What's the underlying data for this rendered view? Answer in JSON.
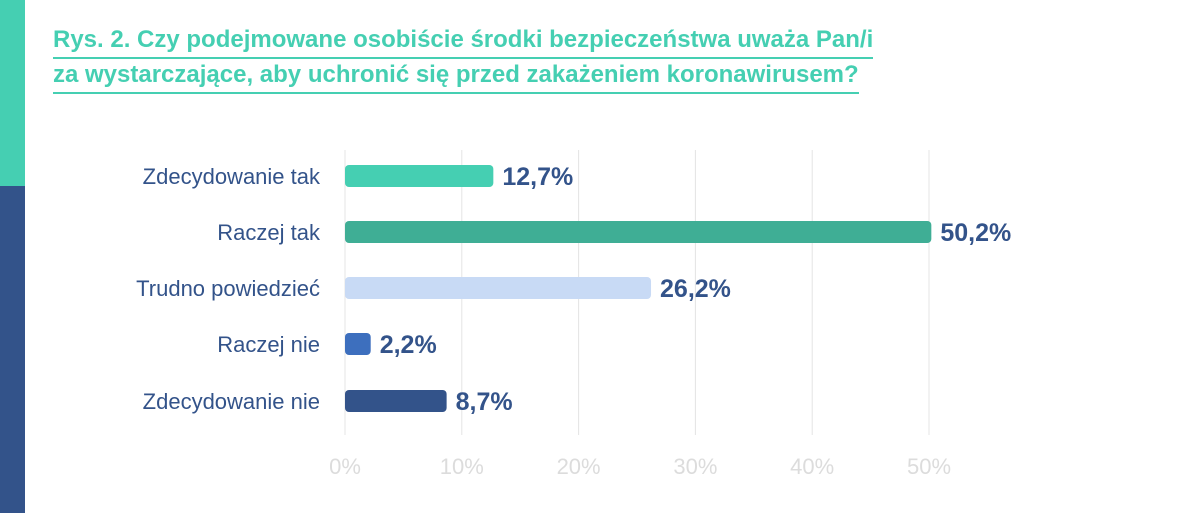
{
  "title_lines": [
    "Rys. 2. Czy podejmowane osobiście środki bezpieczeństwa uważa Pan/i",
    "za wystarczające, aby uchronić się przed zakażeniem koronawirusem?"
  ],
  "colors": {
    "accent_teal": "#45cfb2",
    "accent_navy": "#33538a",
    "value_text": "#33538a",
    "axis_text": "#dcdcdc"
  },
  "chart_data": {
    "type": "bar",
    "orientation": "horizontal",
    "title": "Rys. 2. Czy podejmowane osobiście środki bezpieczeństwa uważa Pan/i za wystarczające, aby uchronić się przed zakażeniem koronawirusem?",
    "categories": [
      "Zdecydowanie tak",
      "Raczej tak",
      "Trudno powiedzieć",
      "Raczej nie",
      "Zdecydowanie nie"
    ],
    "values": [
      12.7,
      50.2,
      26.2,
      2.2,
      8.7
    ],
    "value_labels": [
      "12,7%",
      "50,2%",
      "26,2%",
      "2,2%",
      "8,7%"
    ],
    "bar_colors": [
      "#45cfb2",
      "#3fae95",
      "#c8daf5",
      "#3d6fbe",
      "#33538a"
    ],
    "xlim": [
      0,
      50
    ],
    "ticks": [
      0,
      10,
      20,
      30,
      40,
      50
    ],
    "tick_labels": [
      "0%",
      "10%",
      "20%",
      "30%",
      "40%",
      "50%"
    ],
    "grid": true,
    "legend": false,
    "xlabel": "",
    "ylabel": ""
  }
}
